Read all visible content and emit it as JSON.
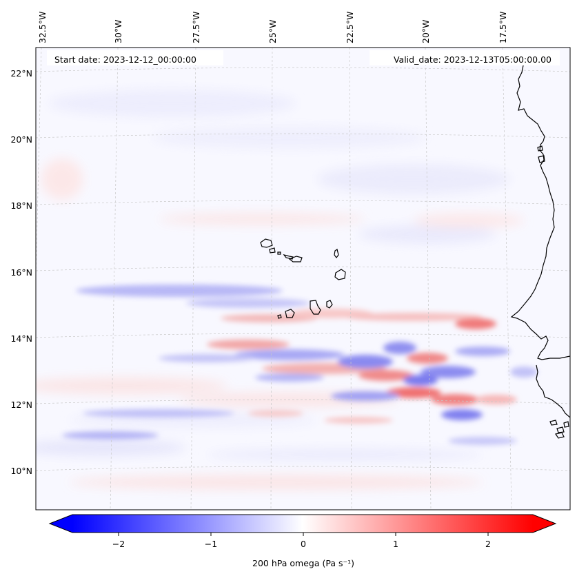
{
  "map": {
    "start_label": "Start date: 2023-12-12_00:00:00",
    "valid_label": "Valid_date: 2023-12-13T05:00:00.00",
    "lon_labels": [
      "32.5°W",
      "30°W",
      "27.5°W",
      "25°W",
      "22.5°W",
      "20°W",
      "17.5°W"
    ],
    "lat_labels": [
      "22°N",
      "20°N",
      "18°N",
      "16°N",
      "14°N",
      "12°N",
      "10°N"
    ],
    "coastline_color": "#000000",
    "gridline_color": "#c8c8c8"
  },
  "colorbar": {
    "label": "200 hPa omega (Pa s⁻¹)",
    "ticks": [
      "−2",
      "−1",
      "0",
      "1",
      "2"
    ],
    "range": [
      -2.75,
      2.75
    ],
    "cmap": "bwr",
    "color_low": "#0000ff",
    "color_mid": "#ffffff",
    "color_high": "#ff0000"
  }
}
